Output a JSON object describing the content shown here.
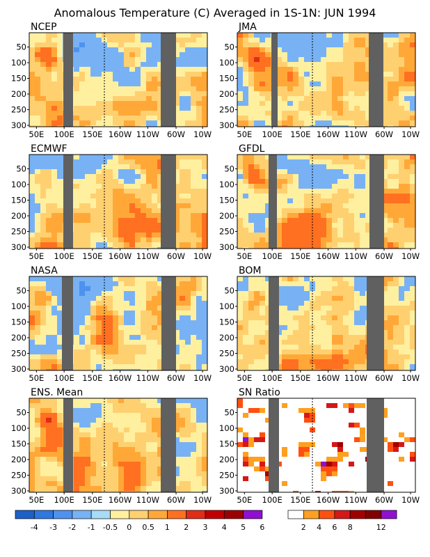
{
  "title": "Anomalous Temperature (C) Averaged in 1S-1N: JUN 1994",
  "chart_data": [
    {
      "type": "heatmap",
      "title": "NCEP",
      "xticks": [
        "50E",
        "100E",
        "150E",
        "160W",
        "110W",
        "60W",
        "10W"
      ],
      "yticks": [
        "50",
        "100",
        "150",
        "200",
        "250",
        "300"
      ],
      "ylim": [
        300,
        0
      ]
    },
    {
      "type": "heatmap",
      "title": "JMA",
      "xticks": [
        "50E",
        "100E",
        "150E",
        "160W",
        "110W",
        "60W",
        "10W"
      ],
      "yticks": [
        "50",
        "100",
        "150",
        "200",
        "250",
        "300"
      ],
      "ylim": [
        300,
        0
      ]
    },
    {
      "type": "heatmap",
      "title": "ECMWF",
      "xticks": [
        "50E",
        "100E",
        "150E",
        "160W",
        "110W",
        "60W",
        "10W"
      ],
      "yticks": [
        "50",
        "100",
        "150",
        "200",
        "250",
        "300"
      ],
      "ylim": [
        300,
        0
      ]
    },
    {
      "type": "heatmap",
      "title": "GFDL",
      "xticks": [
        "50E",
        "100E",
        "150E",
        "160W",
        "110W",
        "60W",
        "10W"
      ],
      "yticks": [
        "50",
        "100",
        "150",
        "200",
        "250",
        "300"
      ],
      "ylim": [
        300,
        0
      ]
    },
    {
      "type": "heatmap",
      "title": "NASA",
      "xticks": [
        "50E",
        "100E",
        "150E",
        "160W",
        "110W",
        "60W",
        "10W"
      ],
      "yticks": [
        "50",
        "100",
        "150",
        "200",
        "250",
        "300"
      ],
      "ylim": [
        300,
        0
      ]
    },
    {
      "type": "heatmap",
      "title": "BOM",
      "xticks": [
        "50E",
        "100E",
        "150E",
        "160W",
        "110W",
        "60W",
        "10W"
      ],
      "yticks": [
        "50",
        "100",
        "150",
        "200",
        "250",
        "300"
      ],
      "ylim": [
        300,
        0
      ]
    },
    {
      "type": "heatmap",
      "title": "ENS. Mean",
      "xticks": [
        "50E",
        "100E",
        "150E",
        "160W",
        "110W",
        "60W",
        "10W"
      ],
      "yticks": [
        "50",
        "100",
        "150",
        "200",
        "250",
        "300"
      ],
      "ylim": [
        300,
        0
      ]
    },
    {
      "type": "heatmap",
      "title": "SN Ratio",
      "xticks": [
        "50E",
        "100E",
        "150E",
        "160W",
        "110W",
        "60W",
        "10W"
      ],
      "yticks": [
        "50",
        "100",
        "150",
        "200",
        "250",
        "300"
      ],
      "ylim": [
        300,
        0
      ]
    }
  ],
  "colorbars": [
    {
      "name": "anomaly",
      "colors": [
        "#1f5fc8",
        "#2f78e0",
        "#4f92ee",
        "#78b2f5",
        "#a6dcf7",
        "#fff0a0",
        "#ffd070",
        "#ffa838",
        "#ff7020",
        "#e02c18",
        "#c00000",
        "#9c0000",
        "#9010d0"
      ],
      "labels": [
        "-4",
        "-3",
        "-2",
        "-1",
        "-0.5",
        "0",
        "0.5",
        "1",
        "2",
        "3",
        "4",
        "5",
        "6"
      ]
    },
    {
      "name": "sn-ratio",
      "colors": [
        "#ffffff",
        "#ffa020",
        "#ff5010",
        "#d41818",
        "#a00000",
        "#800000",
        "#9010d0"
      ],
      "labels": [
        "2",
        "4",
        "6",
        "8",
        "12"
      ]
    }
  ]
}
